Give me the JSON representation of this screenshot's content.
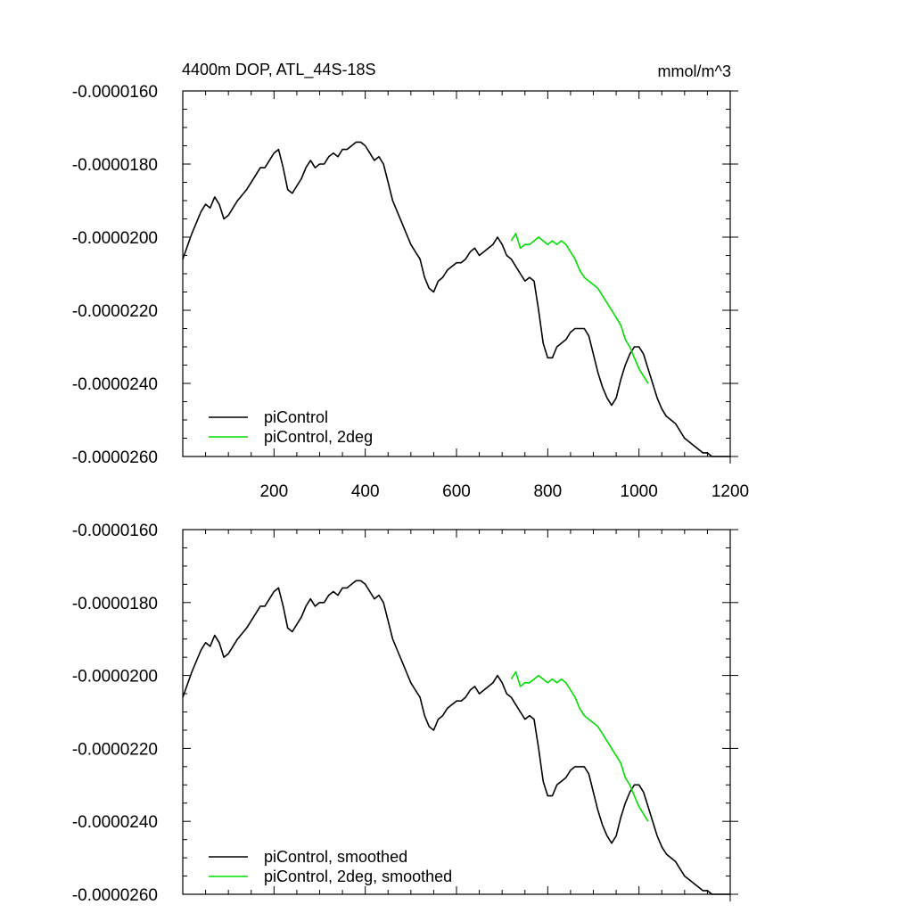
{
  "figure": {
    "title_left": "4400m DOP, ATL_44S-18S",
    "title_right": "mmol/m^3"
  },
  "colors": {
    "axis": "#000000",
    "piControl": "#000000",
    "piControl_2deg": "#00dd00"
  },
  "chart_data": [
    {
      "type": "line",
      "title": "4400m DOP, ATL_44S-18S",
      "units": "mmol/m^3",
      "xlabel": "",
      "ylabel": "",
      "xlim": [
        0,
        1200
      ],
      "ylim": [
        -2.6e-05,
        -1.6e-05
      ],
      "xticks": [
        200,
        400,
        600,
        800,
        1000,
        1200
      ],
      "xtick_labels": [
        "200",
        "400",
        "600",
        "800",
        "1000",
        "1200"
      ],
      "yticks": [
        -1.6e-05,
        -1.8e-05,
        -2e-05,
        -2.2e-05,
        -2.4e-05,
        -2.6e-05
      ],
      "ytick_labels": [
        "-0.0000160",
        "-0.0000180",
        "-0.0000200",
        "-0.0000220",
        "-0.0000240",
        "-0.0000260"
      ],
      "grid": false,
      "legend_position": "bottom-left",
      "series": [
        {
          "name": "piControl",
          "color": "#000000",
          "x": [
            0,
            20,
            40,
            50,
            60,
            70,
            80,
            90,
            100,
            110,
            120,
            140,
            160,
            170,
            180,
            190,
            200,
            210,
            220,
            230,
            240,
            250,
            260,
            270,
            280,
            290,
            300,
            310,
            320,
            330,
            340,
            350,
            360,
            370,
            380,
            390,
            400,
            410,
            420,
            430,
            440,
            450,
            460,
            470,
            480,
            490,
            500,
            510,
            520,
            530,
            540,
            550,
            560,
            570,
            580,
            590,
            600,
            610,
            620,
            630,
            640,
            650,
            660,
            670,
            680,
            690,
            700,
            710,
            720,
            730,
            740,
            750,
            760,
            770,
            780,
            790,
            800,
            810,
            820,
            830,
            840,
            850,
            860,
            870,
            880,
            890,
            900,
            910,
            920,
            930,
            940,
            950,
            960,
            970,
            980,
            990,
            1000,
            1010,
            1020,
            1030,
            1040,
            1050,
            1060,
            1070,
            1080,
            1090,
            1100,
            1110,
            1120,
            1130,
            1140,
            1150,
            1160,
            1170,
            1180,
            1190,
            1200
          ],
          "y": [
            -2.06e-05,
            -1.99e-05,
            -1.93e-05,
            -1.91e-05,
            -1.92e-05,
            -1.89e-05,
            -1.91e-05,
            -1.95e-05,
            -1.94e-05,
            -1.92e-05,
            -1.9e-05,
            -1.87e-05,
            -1.83e-05,
            -1.81e-05,
            -1.81e-05,
            -1.79e-05,
            -1.77e-05,
            -1.76e-05,
            -1.81e-05,
            -1.87e-05,
            -1.88e-05,
            -1.86e-05,
            -1.84e-05,
            -1.81e-05,
            -1.79e-05,
            -1.81e-05,
            -1.8e-05,
            -1.8e-05,
            -1.78e-05,
            -1.77e-05,
            -1.78e-05,
            -1.76e-05,
            -1.76e-05,
            -1.75e-05,
            -1.74e-05,
            -1.74e-05,
            -1.75e-05,
            -1.77e-05,
            -1.79e-05,
            -1.78e-05,
            -1.8e-05,
            -1.85e-05,
            -1.9e-05,
            -1.93e-05,
            -1.96e-05,
            -1.99e-05,
            -2.02e-05,
            -2.04e-05,
            -2.06e-05,
            -2.11e-05,
            -2.14e-05,
            -2.15e-05,
            -2.12e-05,
            -2.11e-05,
            -2.09e-05,
            -2.08e-05,
            -2.07e-05,
            -2.07e-05,
            -2.06e-05,
            -2.04e-05,
            -2.03e-05,
            -2.05e-05,
            -2.04e-05,
            -2.03e-05,
            -2.02e-05,
            -2e-05,
            -2.02e-05,
            -2.05e-05,
            -2.06e-05,
            -2.08e-05,
            -2.1e-05,
            -2.12e-05,
            -2.11e-05,
            -2.12e-05,
            -2.2e-05,
            -2.29e-05,
            -2.33e-05,
            -2.33e-05,
            -2.3e-05,
            -2.29e-05,
            -2.28e-05,
            -2.26e-05,
            -2.25e-05,
            -2.25e-05,
            -2.25e-05,
            -2.27e-05,
            -2.32e-05,
            -2.37e-05,
            -2.41e-05,
            -2.44e-05,
            -2.46e-05,
            -2.44e-05,
            -2.39e-05,
            -2.35e-05,
            -2.32e-05,
            -2.3e-05,
            -2.3e-05,
            -2.32e-05,
            -2.36e-05,
            -2.4e-05,
            -2.44e-05,
            -2.47e-05,
            -2.49e-05,
            -2.5e-05,
            -2.51e-05,
            -2.53e-05,
            -2.55e-05,
            -2.56e-05,
            -2.57e-05,
            -2.58e-05,
            -2.59e-05,
            -2.59e-05,
            -2.6e-05,
            -2.6e-05,
            -2.6e-05,
            -2.6e-05,
            -2.6e-05
          ]
        },
        {
          "name": "piControl, 2deg",
          "color": "#00dd00",
          "x": [
            720,
            730,
            740,
            750,
            760,
            770,
            780,
            790,
            800,
            810,
            820,
            830,
            840,
            850,
            860,
            870,
            880,
            890,
            900,
            910,
            920,
            930,
            940,
            950,
            960,
            970,
            980,
            990,
            1000,
            1010,
            1020
          ],
          "y": [
            -2.01e-05,
            -1.99e-05,
            -2.03e-05,
            -2.02e-05,
            -2.02e-05,
            -2.01e-05,
            -2e-05,
            -2.01e-05,
            -2.02e-05,
            -2.01e-05,
            -2.02e-05,
            -2.01e-05,
            -2.02e-05,
            -2.04e-05,
            -2.06e-05,
            -2.09e-05,
            -2.11e-05,
            -2.12e-05,
            -2.13e-05,
            -2.14e-05,
            -2.16e-05,
            -2.18e-05,
            -2.2e-05,
            -2.22e-05,
            -2.24e-05,
            -2.28e-05,
            -2.3e-05,
            -2.33e-05,
            -2.36e-05,
            -2.38e-05,
            -2.4e-05
          ]
        }
      ]
    },
    {
      "type": "line",
      "xlabel": "",
      "ylabel": "",
      "xlim": [
        0,
        1200
      ],
      "ylim": [
        -2.6e-05,
        -1.6e-05
      ],
      "yticks": [
        -1.6e-05,
        -1.8e-05,
        -2e-05,
        -2.2e-05,
        -2.4e-05,
        -2.6e-05
      ],
      "ytick_labels": [
        "-0.0000160",
        "-0.0000180",
        "-0.0000200",
        "-0.0000220",
        "-0.0000240",
        "-0.0000260"
      ],
      "grid": false,
      "legend_position": "bottom-left",
      "series": [
        {
          "name": "piControl, smoothed",
          "color": "#000000",
          "x": [
            0,
            20,
            40,
            50,
            60,
            70,
            80,
            90,
            100,
            110,
            120,
            140,
            160,
            170,
            180,
            190,
            200,
            210,
            220,
            230,
            240,
            250,
            260,
            270,
            280,
            290,
            300,
            310,
            320,
            330,
            340,
            350,
            360,
            370,
            380,
            390,
            400,
            410,
            420,
            430,
            440,
            450,
            460,
            470,
            480,
            490,
            500,
            510,
            520,
            530,
            540,
            550,
            560,
            570,
            580,
            590,
            600,
            610,
            620,
            630,
            640,
            650,
            660,
            670,
            680,
            690,
            700,
            710,
            720,
            730,
            740,
            750,
            760,
            770,
            780,
            790,
            800,
            810,
            820,
            830,
            840,
            850,
            860,
            870,
            880,
            890,
            900,
            910,
            920,
            930,
            940,
            950,
            960,
            970,
            980,
            990,
            1000,
            1010,
            1020,
            1030,
            1040,
            1050,
            1060,
            1070,
            1080,
            1090,
            1100,
            1110,
            1120,
            1130,
            1140,
            1150,
            1160,
            1170,
            1180,
            1190,
            1200
          ],
          "y": [
            -2.06e-05,
            -1.99e-05,
            -1.93e-05,
            -1.91e-05,
            -1.92e-05,
            -1.89e-05,
            -1.91e-05,
            -1.95e-05,
            -1.94e-05,
            -1.92e-05,
            -1.9e-05,
            -1.87e-05,
            -1.83e-05,
            -1.81e-05,
            -1.81e-05,
            -1.79e-05,
            -1.77e-05,
            -1.76e-05,
            -1.81e-05,
            -1.87e-05,
            -1.88e-05,
            -1.86e-05,
            -1.84e-05,
            -1.81e-05,
            -1.79e-05,
            -1.81e-05,
            -1.8e-05,
            -1.8e-05,
            -1.78e-05,
            -1.77e-05,
            -1.78e-05,
            -1.76e-05,
            -1.76e-05,
            -1.75e-05,
            -1.74e-05,
            -1.74e-05,
            -1.75e-05,
            -1.77e-05,
            -1.79e-05,
            -1.78e-05,
            -1.8e-05,
            -1.85e-05,
            -1.9e-05,
            -1.93e-05,
            -1.96e-05,
            -1.99e-05,
            -2.02e-05,
            -2.04e-05,
            -2.06e-05,
            -2.11e-05,
            -2.14e-05,
            -2.15e-05,
            -2.12e-05,
            -2.11e-05,
            -2.09e-05,
            -2.08e-05,
            -2.07e-05,
            -2.07e-05,
            -2.06e-05,
            -2.04e-05,
            -2.03e-05,
            -2.05e-05,
            -2.04e-05,
            -2.03e-05,
            -2.02e-05,
            -2e-05,
            -2.02e-05,
            -2.05e-05,
            -2.06e-05,
            -2.08e-05,
            -2.1e-05,
            -2.12e-05,
            -2.11e-05,
            -2.12e-05,
            -2.2e-05,
            -2.29e-05,
            -2.33e-05,
            -2.33e-05,
            -2.3e-05,
            -2.29e-05,
            -2.28e-05,
            -2.26e-05,
            -2.25e-05,
            -2.25e-05,
            -2.25e-05,
            -2.27e-05,
            -2.32e-05,
            -2.37e-05,
            -2.41e-05,
            -2.44e-05,
            -2.46e-05,
            -2.44e-05,
            -2.39e-05,
            -2.35e-05,
            -2.32e-05,
            -2.3e-05,
            -2.3e-05,
            -2.32e-05,
            -2.36e-05,
            -2.4e-05,
            -2.44e-05,
            -2.47e-05,
            -2.49e-05,
            -2.5e-05,
            -2.51e-05,
            -2.53e-05,
            -2.55e-05,
            -2.56e-05,
            -2.57e-05,
            -2.58e-05,
            -2.59e-05,
            -2.59e-05,
            -2.6e-05,
            -2.6e-05,
            -2.6e-05,
            -2.6e-05,
            -2.6e-05
          ]
        },
        {
          "name": "piControl, 2deg, smoothed",
          "color": "#00dd00",
          "x": [
            720,
            730,
            740,
            750,
            760,
            770,
            780,
            790,
            800,
            810,
            820,
            830,
            840,
            850,
            860,
            870,
            880,
            890,
            900,
            910,
            920,
            930,
            940,
            950,
            960,
            970,
            980,
            990,
            1000,
            1010,
            1020
          ],
          "y": [
            -2.01e-05,
            -1.99e-05,
            -2.03e-05,
            -2.02e-05,
            -2.02e-05,
            -2.01e-05,
            -2e-05,
            -2.01e-05,
            -2.02e-05,
            -2.01e-05,
            -2.02e-05,
            -2.01e-05,
            -2.02e-05,
            -2.04e-05,
            -2.06e-05,
            -2.09e-05,
            -2.11e-05,
            -2.12e-05,
            -2.13e-05,
            -2.14e-05,
            -2.16e-05,
            -2.18e-05,
            -2.2e-05,
            -2.22e-05,
            -2.24e-05,
            -2.28e-05,
            -2.3e-05,
            -2.33e-05,
            -2.36e-05,
            -2.38e-05,
            -2.4e-05
          ]
        }
      ]
    }
  ]
}
